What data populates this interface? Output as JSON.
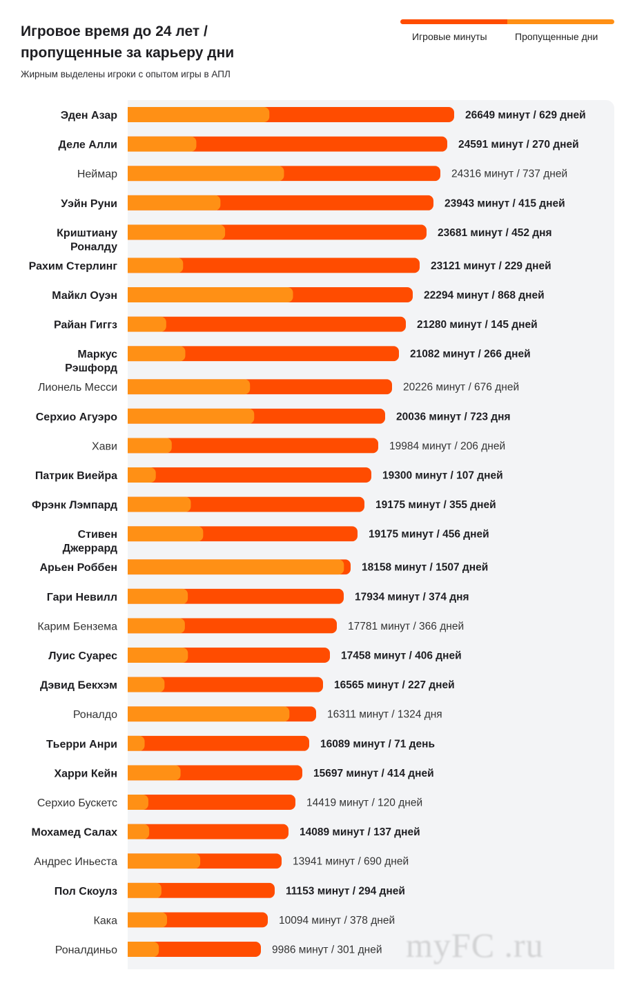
{
  "header": {
    "title": "Игровое время до 24 лет / пропущенные за карьеру дни",
    "subtitle": "Жирным выделены игроки с опытом игры в АПЛ"
  },
  "legend": {
    "items": [
      {
        "label": "Игровые минуты",
        "color": "#ff4c00"
      },
      {
        "label": "Пропущенные дни",
        "color": "#ff9015"
      }
    ]
  },
  "watermark": "myFC .ru",
  "colors": {
    "minutes": "#ff4c00",
    "days": "#ff9015",
    "panel": "#f3f4f6"
  },
  "chart_data": {
    "type": "bar",
    "orientation": "horizontal",
    "stacked": true,
    "title": "Игровое время до 24 лет / пропущенные за карьеру дни",
    "subtitle": "Жирным выделены игроки с опытом игры в АПЛ",
    "legend_position": "top-right",
    "series": [
      {
        "name": "Игровые минуты",
        "unit": "минут"
      },
      {
        "name": "Пропущенные дни",
        "unit": "дней"
      }
    ],
    "rows": [
      {
        "name": "Эден Азар",
        "epl": true,
        "minutes": 26649,
        "days": 629,
        "label": "26649 минут / 629 дней"
      },
      {
        "name": "Деле Алли",
        "epl": true,
        "minutes": 24591,
        "days": 270,
        "label": "24591 минут / 270 дней"
      },
      {
        "name": "Неймар",
        "epl": false,
        "minutes": 24316,
        "days": 737,
        "label": "24316 минут / 737 дней"
      },
      {
        "name": "Уэйн Руни",
        "epl": true,
        "minutes": 23943,
        "days": 415,
        "label": "23943 минут / 415 дней"
      },
      {
        "name": "Криштиану Роналду",
        "epl": true,
        "minutes": 23681,
        "days": 452,
        "label": "23681 минут / 452 дня"
      },
      {
        "name": "Рахим Стерлинг",
        "epl": true,
        "minutes": 23121,
        "days": 229,
        "label": "23121 минут / 229 дней"
      },
      {
        "name": "Майкл Оуэн",
        "epl": true,
        "minutes": 22294,
        "days": 868,
        "label": "22294 минут / 868 дней"
      },
      {
        "name": "Райан Гиггз",
        "epl": true,
        "minutes": 21280,
        "days": 145,
        "label": "21280 минут / 145 дней"
      },
      {
        "name": "Маркус Рэшфорд",
        "epl": true,
        "minutes": 21082,
        "days": 266,
        "label": "21082 минут / 266 дней"
      },
      {
        "name": "Лионель Месси",
        "epl": false,
        "minutes": 20226,
        "days": 676,
        "label": "20226 минут / 676 дней"
      },
      {
        "name": "Серхио Агуэро",
        "epl": true,
        "minutes": 20036,
        "days": 723,
        "label": "20036 минут / 723 дня"
      },
      {
        "name": "Хави",
        "epl": false,
        "minutes": 19984,
        "days": 206,
        "label": "19984 минут / 206 дней"
      },
      {
        "name": "Патрик Виейра",
        "epl": true,
        "minutes": 19300,
        "days": 107,
        "label": "19300 минут / 107 дней"
      },
      {
        "name": "Фрэнк Лэмпард",
        "epl": true,
        "minutes": 19175,
        "days": 355,
        "label": "19175 минут / 355 дней"
      },
      {
        "name": "Стивен Джеррард",
        "epl": true,
        "minutes": 19175,
        "days": 456,
        "label": "19175 минут / 456 дней"
      },
      {
        "name": "Арьен Роббен",
        "epl": true,
        "minutes": 18158,
        "days": 1507,
        "label": "18158 минут / 1507 дней"
      },
      {
        "name": "Гари Невилл",
        "epl": true,
        "minutes": 17934,
        "days": 374,
        "label": "17934 минут / 374 дня"
      },
      {
        "name": "Карим Бензема",
        "epl": false,
        "minutes": 17781,
        "days": 366,
        "label": "17781 минут / 366 дней"
      },
      {
        "name": "Луис Суарес",
        "epl": true,
        "minutes": 17458,
        "days": 406,
        "label": "17458 минут / 406 дней"
      },
      {
        "name": "Дэвид Бекхэм",
        "epl": true,
        "minutes": 16565,
        "days": 227,
        "label": "16565 минут / 227 дней"
      },
      {
        "name": "Роналдо",
        "epl": false,
        "minutes": 16311,
        "days": 1324,
        "label": "16311 минут / 1324 дня"
      },
      {
        "name": "Тьерри Анри",
        "epl": true,
        "minutes": 16089,
        "days": 71,
        "label": "16089 минут / 71 день"
      },
      {
        "name": "Харри Кейн",
        "epl": true,
        "minutes": 15697,
        "days": 414,
        "label": "15697 минут / 414 дней"
      },
      {
        "name": "Серхио Бускетс",
        "epl": false,
        "minutes": 14419,
        "days": 120,
        "label": "14419 минут / 120 дней"
      },
      {
        "name": "Мохамед Салах",
        "epl": true,
        "minutes": 14089,
        "days": 137,
        "label": "14089 минут / 137 дней"
      },
      {
        "name": "Андрес Иньеста",
        "epl": false,
        "minutes": 13941,
        "days": 690,
        "label": "13941 минут / 690 дней"
      },
      {
        "name": "Пол Скоулз",
        "epl": true,
        "minutes": 11153,
        "days": 294,
        "label": "11153 минут / 294 дней"
      },
      {
        "name": "Кака",
        "epl": false,
        "minutes": 10094,
        "days": 378,
        "label": "10094 минут / 378 дней"
      },
      {
        "name": "Роналдиньо",
        "epl": false,
        "minutes": 9986,
        "days": 301,
        "label": "9986 минут / 301 дней"
      }
    ]
  }
}
